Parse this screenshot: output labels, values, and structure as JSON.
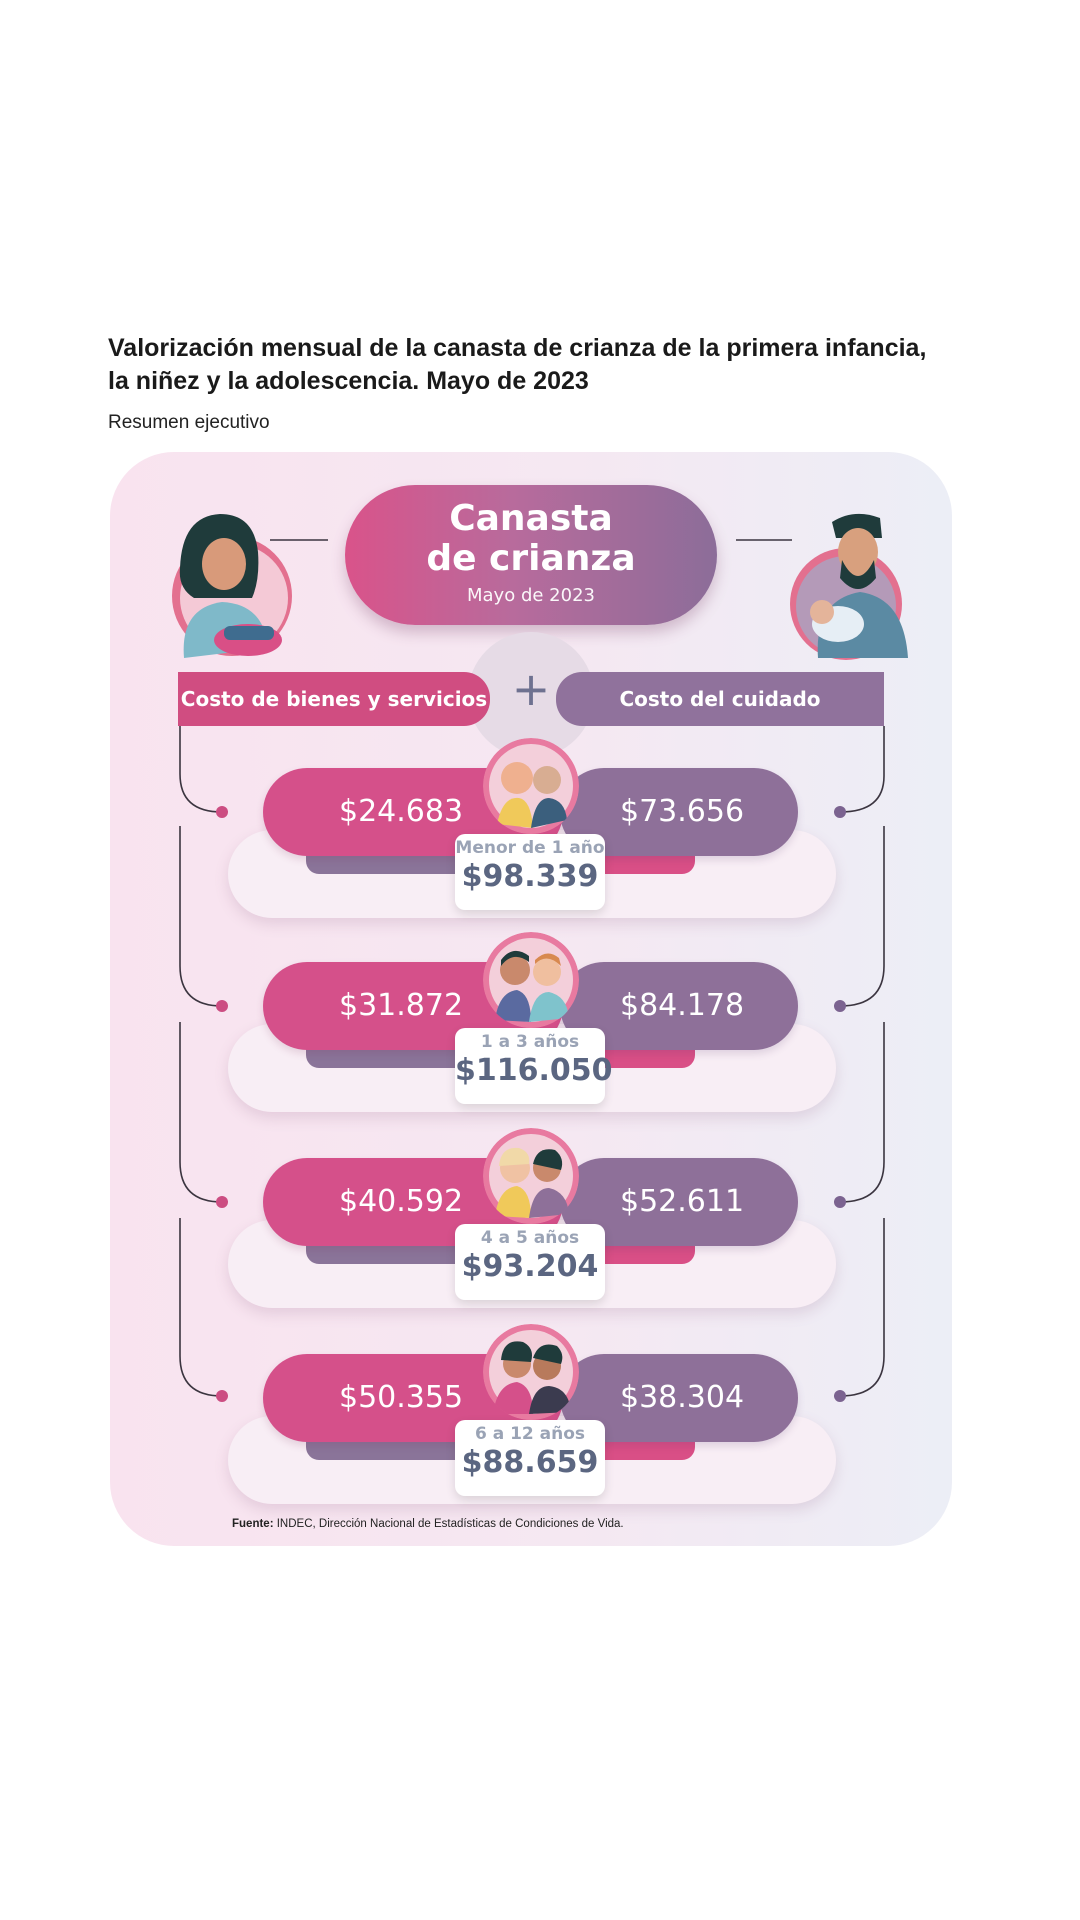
{
  "header": {
    "title": "Valorización mensual de la canasta de crianza de la primera infancia, la niñez y la adolescencia. Mayo de 2023",
    "subtitle": "Resumen ejecutivo"
  },
  "infographic": {
    "main_title": "Canasta\nde crianza",
    "main_subtitle": "Mayo de 2023",
    "plus_symbol": "+",
    "left_label": "Costo de bienes y servicios",
    "right_label": "Costo del cuidado"
  },
  "colors": {
    "goods": "#d5508a",
    "care": "#8e7099",
    "total": "#5b6681"
  },
  "chart_data": {
    "type": "table",
    "categories": [
      "Menor de 1 año",
      "1 a 3 años",
      "4 a 5 años",
      "6 a 12 años"
    ],
    "series": [
      {
        "name": "Costo de bienes y servicios",
        "values": [
          24683,
          31872,
          40592,
          50355
        ]
      },
      {
        "name": "Costo del cuidado",
        "values": [
          73656,
          84178,
          52611,
          38304
        ]
      }
    ],
    "totals": [
      98339,
      116050,
      93204,
      88659
    ],
    "rows": [
      {
        "age": "Menor de 1 año",
        "goods": "$24.683",
        "care": "$73.656",
        "total": "$98.339"
      },
      {
        "age": "1 a 3 años",
        "goods": "$31.872",
        "care": "$84.178",
        "total": "$116.050"
      },
      {
        "age": "4 a 5 años",
        "goods": "$40.592",
        "care": "$52.611",
        "total": "$93.204"
      },
      {
        "age": "6 a 12 años",
        "goods": "$50.355",
        "care": "$38.304",
        "total": "$88.659"
      }
    ]
  },
  "footer": {
    "source_label": "Fuente:",
    "source_text": " INDEC, Dirección Nacional de Estadísticas de Condiciones de Vida."
  }
}
